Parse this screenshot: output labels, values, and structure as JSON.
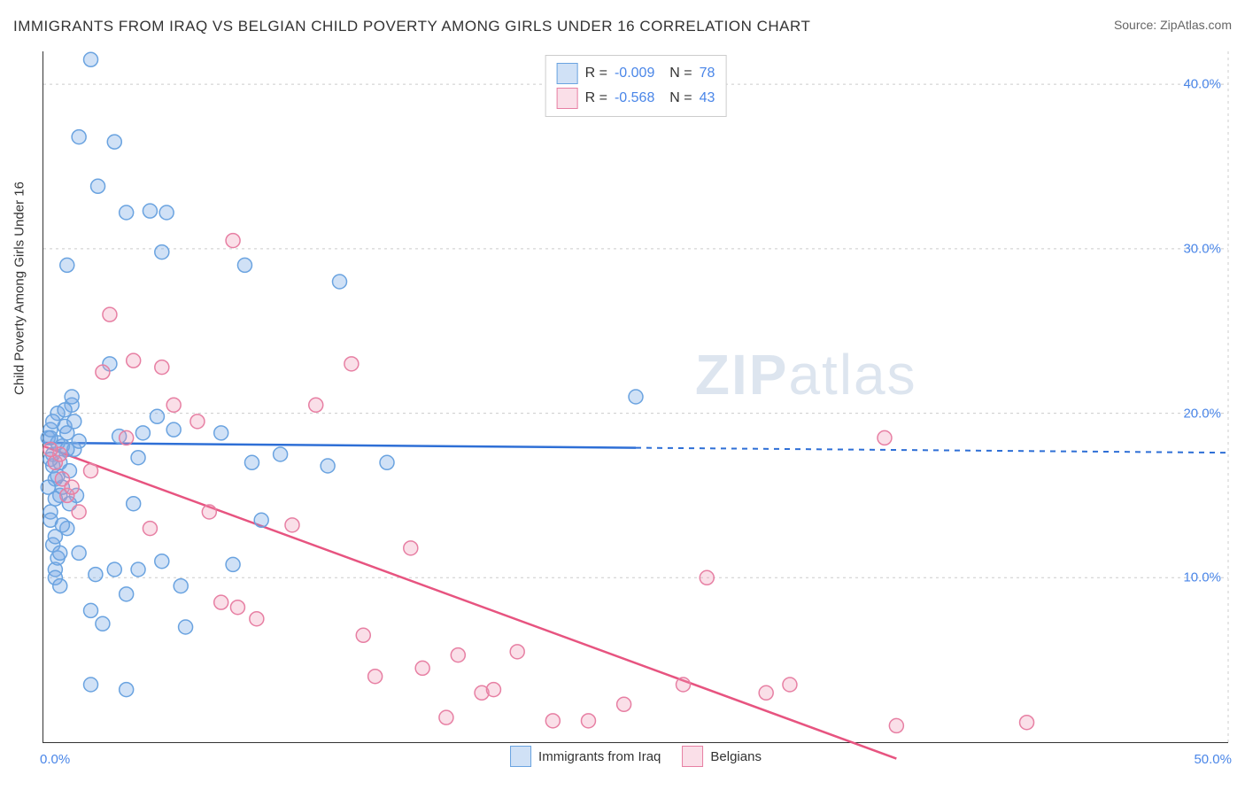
{
  "title": "IMMIGRANTS FROM IRAQ VS BELGIAN CHILD POVERTY AMONG GIRLS UNDER 16 CORRELATION CHART",
  "source_prefix": "Source: ",
  "source_name": "ZipAtlas.com",
  "y_axis_label": "Child Poverty Among Girls Under 16",
  "watermark_bold": "ZIP",
  "watermark_light": "atlas",
  "chart": {
    "type": "scatter",
    "xlim": [
      0,
      50
    ],
    "ylim": [
      0,
      42
    ],
    "x_ticks": [
      0,
      50
    ],
    "x_tick_labels": [
      "0.0%",
      "50.0%"
    ],
    "y_ticks": [
      10,
      20,
      30,
      40
    ],
    "y_tick_labels": [
      "10.0%",
      "20.0%",
      "30.0%",
      "40.0%"
    ],
    "grid_color": "#cccccc",
    "background_color": "#ffffff",
    "marker_radius": 8,
    "marker_stroke_width": 1.5,
    "trend_line_width": 2.5,
    "series": [
      {
        "name": "Immigrants from Iraq",
        "fill_color": "rgba(120,170,230,0.35)",
        "stroke_color": "#6aa3e0",
        "trend_color": "#2e6fd6",
        "r_value": "-0.009",
        "n_value": "78",
        "trend": {
          "x1": 0,
          "y1": 18.2,
          "x2": 25,
          "y2": 17.9,
          "dash_x2": 50,
          "dash_y2": 17.6
        },
        "points": [
          [
            0.2,
            18.5
          ],
          [
            0.3,
            19.0
          ],
          [
            0.4,
            17.5
          ],
          [
            0.5,
            16.0
          ],
          [
            0.6,
            20.0
          ],
          [
            0.7,
            15.0
          ],
          [
            0.8,
            18.0
          ],
          [
            0.3,
            14.0
          ],
          [
            0.4,
            12.0
          ],
          [
            0.5,
            10.5
          ],
          [
            0.6,
            11.2
          ],
          [
            0.7,
            17.0
          ],
          [
            0.9,
            19.2
          ],
          [
            1.0,
            18.8
          ],
          [
            1.2,
            20.5
          ],
          [
            1.1,
            16.5
          ],
          [
            1.3,
            17.8
          ],
          [
            1.5,
            18.3
          ],
          [
            1.0,
            29.0
          ],
          [
            1.5,
            36.8
          ],
          [
            2.0,
            41.5
          ],
          [
            2.3,
            33.8
          ],
          [
            2.8,
            23.0
          ],
          [
            3.0,
            36.5
          ],
          [
            3.2,
            18.6
          ],
          [
            3.5,
            32.2
          ],
          [
            4.2,
            18.8
          ],
          [
            4.5,
            32.3
          ],
          [
            4.8,
            19.8
          ],
          [
            5.0,
            29.8
          ],
          [
            5.2,
            32.2
          ],
          [
            5.5,
            19.0
          ],
          [
            5.8,
            9.5
          ],
          [
            2.0,
            8.0
          ],
          [
            2.5,
            7.2
          ],
          [
            3.0,
            10.5
          ],
          [
            3.5,
            9.0
          ],
          [
            4.0,
            10.5
          ],
          [
            5.0,
            11.0
          ],
          [
            6.0,
            7.0
          ],
          [
            7.5,
            18.8
          ],
          [
            8.0,
            10.8
          ],
          [
            8.5,
            29.0
          ],
          [
            8.8,
            17.0
          ],
          [
            9.2,
            13.5
          ],
          [
            10.0,
            17.5
          ],
          [
            12.0,
            16.8
          ],
          [
            12.5,
            28.0
          ],
          [
            14.5,
            17.0
          ],
          [
            2.0,
            3.5
          ],
          [
            3.5,
            3.2
          ],
          [
            4.0,
            17.3
          ],
          [
            0.3,
            13.5
          ],
          [
            0.5,
            14.8
          ],
          [
            0.8,
            15.5
          ],
          [
            1.0,
            13.0
          ],
          [
            1.2,
            21.0
          ],
          [
            1.3,
            19.5
          ],
          [
            0.5,
            10.0
          ],
          [
            0.7,
            9.5
          ],
          [
            1.5,
            11.5
          ],
          [
            0.4,
            16.8
          ],
          [
            0.3,
            17.2
          ],
          [
            0.6,
            18.2
          ],
          [
            0.9,
            20.2
          ],
          [
            1.1,
            14.5
          ],
          [
            2.2,
            10.2
          ],
          [
            25.0,
            21.0
          ],
          [
            0.2,
            15.5
          ],
          [
            0.4,
            19.5
          ],
          [
            0.6,
            16.2
          ],
          [
            1.4,
            15.0
          ],
          [
            1.0,
            17.8
          ],
          [
            0.8,
            13.2
          ],
          [
            0.5,
            12.5
          ],
          [
            0.7,
            11.5
          ],
          [
            0.3,
            18.5
          ],
          [
            3.8,
            14.5
          ]
        ]
      },
      {
        "name": "Belgians",
        "fill_color": "rgba(240,150,180,0.30)",
        "stroke_color": "#e77fa3",
        "trend_color": "#e75480",
        "r_value": "-0.568",
        "n_value": "43",
        "trend": {
          "x1": 0,
          "y1": 18.0,
          "x2": 36,
          "y2": -1.0,
          "dash_x2": 36,
          "dash_y2": -1.0
        },
        "points": [
          [
            0.5,
            17.0
          ],
          [
            0.7,
            17.5
          ],
          [
            0.8,
            16.0
          ],
          [
            1.0,
            15.0
          ],
          [
            1.2,
            15.5
          ],
          [
            1.5,
            14.0
          ],
          [
            2.0,
            16.5
          ],
          [
            2.5,
            22.5
          ],
          [
            2.8,
            26.0
          ],
          [
            3.5,
            18.5
          ],
          [
            3.8,
            23.2
          ],
          [
            4.5,
            13.0
          ],
          [
            5.0,
            22.8
          ],
          [
            5.5,
            20.5
          ],
          [
            6.5,
            19.5
          ],
          [
            7.0,
            14.0
          ],
          [
            7.5,
            8.5
          ],
          [
            8.0,
            30.5
          ],
          [
            8.2,
            8.2
          ],
          [
            9.0,
            7.5
          ],
          [
            10.5,
            13.2
          ],
          [
            11.5,
            20.5
          ],
          [
            13.0,
            23.0
          ],
          [
            13.5,
            6.5
          ],
          [
            14.0,
            4.0
          ],
          [
            15.5,
            11.8
          ],
          [
            16.0,
            4.5
          ],
          [
            17.0,
            1.5
          ],
          [
            17.5,
            5.3
          ],
          [
            18.5,
            3.0
          ],
          [
            19.0,
            3.2
          ],
          [
            20.0,
            5.5
          ],
          [
            21.5,
            1.3
          ],
          [
            23.0,
            1.3
          ],
          [
            24.5,
            2.3
          ],
          [
            27.0,
            3.5
          ],
          [
            28.0,
            10.0
          ],
          [
            30.5,
            3.0
          ],
          [
            31.5,
            3.5
          ],
          [
            35.5,
            18.5
          ],
          [
            36.0,
            1.0
          ],
          [
            41.5,
            1.2
          ],
          [
            0.3,
            17.8
          ]
        ]
      }
    ]
  },
  "legend_bottom": [
    {
      "label": "Immigrants from Iraq",
      "fill": "rgba(120,170,230,0.35)",
      "border": "#6aa3e0"
    },
    {
      "label": "Belgians",
      "fill": "rgba(240,150,180,0.30)",
      "border": "#e77fa3"
    }
  ]
}
